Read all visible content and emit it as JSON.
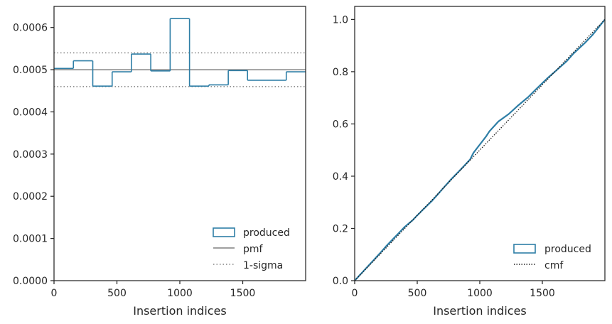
{
  "chart_data": [
    {
      "type": "step-histogram",
      "xlabel": "Insertion indices",
      "ylabel": "",
      "xlim": [
        0,
        2000
      ],
      "ylim": [
        0,
        0.00065
      ],
      "xticks": [
        0,
        500,
        1000,
        1500
      ],
      "yticks": [
        0.0,
        0.0001,
        0.0002,
        0.0003,
        0.0004,
        0.0005,
        0.0006
      ],
      "ytick_labels": [
        "0.0000",
        "0.0001",
        "0.0002",
        "0.0003",
        "0.0004",
        "0.0005",
        "0.0006"
      ],
      "bin_edges": [
        0,
        154,
        308,
        462,
        615,
        769,
        923,
        1077,
        1231,
        1385,
        1538,
        1692,
        1846,
        2000
      ],
      "values": [
        0.000503,
        0.000521,
        0.000461,
        0.000495,
        0.000537,
        0.000497,
        0.000621,
        0.000461,
        0.000464,
        0.000498,
        0.000475,
        0.000475,
        0.000495
      ],
      "pmf": 0.0005,
      "sigma_band": [
        0.00046,
        0.00054
      ],
      "legend": {
        "location": "lower right",
        "entries": [
          {
            "label": "produced",
            "style": "patch"
          },
          {
            "label": "pmf",
            "style": "solid"
          },
          {
            "label": "1-sigma",
            "style": "dotted"
          }
        ]
      },
      "grid": false
    },
    {
      "type": "line",
      "xlabel": "Insertion indices",
      "ylabel": "",
      "xlim": [
        0,
        2000
      ],
      "ylim": [
        0,
        1.05
      ],
      "xticks": [
        0,
        500,
        1000,
        1500
      ],
      "yticks": [
        0.0,
        0.2,
        0.4,
        0.6,
        0.8,
        1.0
      ],
      "ytick_labels": [
        "0.0",
        "0.2",
        "0.4",
        "0.6",
        "0.8",
        "1.0"
      ],
      "series": [
        {
          "name": "produced",
          "x": [
            0,
            50,
            100,
            154,
            200,
            250,
            308,
            350,
            400,
            462,
            500,
            550,
            615,
            660,
            700,
            769,
            820,
            870,
            923,
            950,
            1000,
            1050,
            1077,
            1150,
            1231,
            1300,
            1385,
            1450,
            1538,
            1600,
            1692,
            1750,
            1846,
            1900,
            2000
          ],
          "y": [
            0.0,
            0.026,
            0.052,
            0.08,
            0.104,
            0.131,
            0.16,
            0.181,
            0.206,
            0.231,
            0.25,
            0.274,
            0.304,
            0.328,
            0.35,
            0.387,
            0.412,
            0.437,
            0.464,
            0.49,
            0.521,
            0.552,
            0.572,
            0.61,
            0.638,
            0.668,
            0.702,
            0.733,
            0.774,
            0.8,
            0.839,
            0.87,
            0.913,
            0.94,
            1.0
          ]
        },
        {
          "name": "cmf",
          "x": [
            0,
            2000
          ],
          "y": [
            0.0,
            1.0
          ]
        }
      ],
      "legend": {
        "location": "lower right",
        "entries": [
          {
            "label": "produced",
            "style": "patch"
          },
          {
            "label": "cmf",
            "style": "dotted"
          }
        ]
      },
      "grid": false
    }
  ],
  "colors": {
    "produced": "#2e7ea6",
    "pmf": "#808080",
    "sigma": "#808080",
    "cmf": "#1a1a1a",
    "axes": "#262626"
  }
}
